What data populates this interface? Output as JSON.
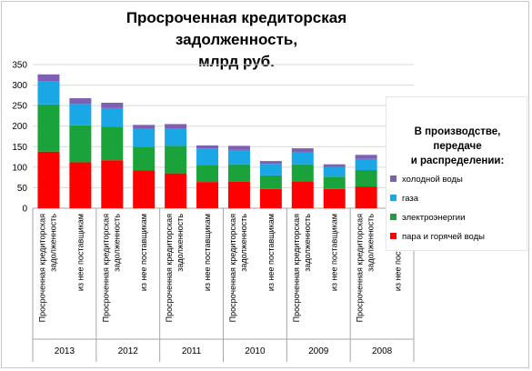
{
  "chart_data": {
    "type": "bar",
    "stacked": true,
    "title_lines": [
      "Просроченная кредиторская задолженность,",
      "млрд руб."
    ],
    "categories": [
      "Просроченная кредиторская задолженность",
      "из нее поставщикам",
      "Просроченная кредиторская задолженность",
      "из нее поставщикам",
      "Просроченная кредиторская задолженность",
      "из нее поставщикам",
      "Просроченная кредиторская задолженность",
      "из нее поставщикам",
      "Просроченная кредиторская задолженность",
      "из нее поставщикам",
      "Просроченная кредиторская задолженность",
      "из нее поставщикам"
    ],
    "groups": [
      "2013",
      "2012",
      "2011",
      "2010",
      "2009",
      "2008"
    ],
    "series": [
      {
        "name": "пара и горячей воды",
        "color": "#ff0000",
        "values": [
          138,
          112,
          117,
          92,
          85,
          64,
          65,
          47,
          66,
          47,
          53,
          34
        ]
      },
      {
        "name": "электроэнергии",
        "color": "#1aa33a",
        "values": [
          115,
          90,
          82,
          58,
          67,
          42,
          42,
          33,
          41,
          30,
          40,
          28
        ]
      },
      {
        "name": "газа",
        "color": "#1aa7e6",
        "values": [
          57,
          52,
          45,
          43,
          42,
          40,
          35,
          28,
          29,
          23,
          27,
          24
        ]
      },
      {
        "name": "холодной воды",
        "color": "#7f5fb4",
        "values": [
          16,
          14,
          13,
          10,
          11,
          7,
          10,
          7,
          10,
          7,
          10,
          6
        ]
      }
    ],
    "ylim": [
      0,
      350
    ],
    "yticks": [
      "0",
      "50",
      "100",
      "150",
      "200",
      "250",
      "300",
      "350"
    ],
    "grid": true,
    "legend_placement": "right"
  },
  "legend": {
    "title_lines": [
      "В производстве, передаче",
      "и распределении:"
    ],
    "items": [
      {
        "label": "холодной воды",
        "color": "#7f5fb4"
      },
      {
        "label": "газа",
        "color": "#1aa7e6"
      },
      {
        "label": "электроэнергии",
        "color": "#1aa33a"
      },
      {
        "label": "пара и горячей воды",
        "color": "#ff0000"
      }
    ]
  }
}
